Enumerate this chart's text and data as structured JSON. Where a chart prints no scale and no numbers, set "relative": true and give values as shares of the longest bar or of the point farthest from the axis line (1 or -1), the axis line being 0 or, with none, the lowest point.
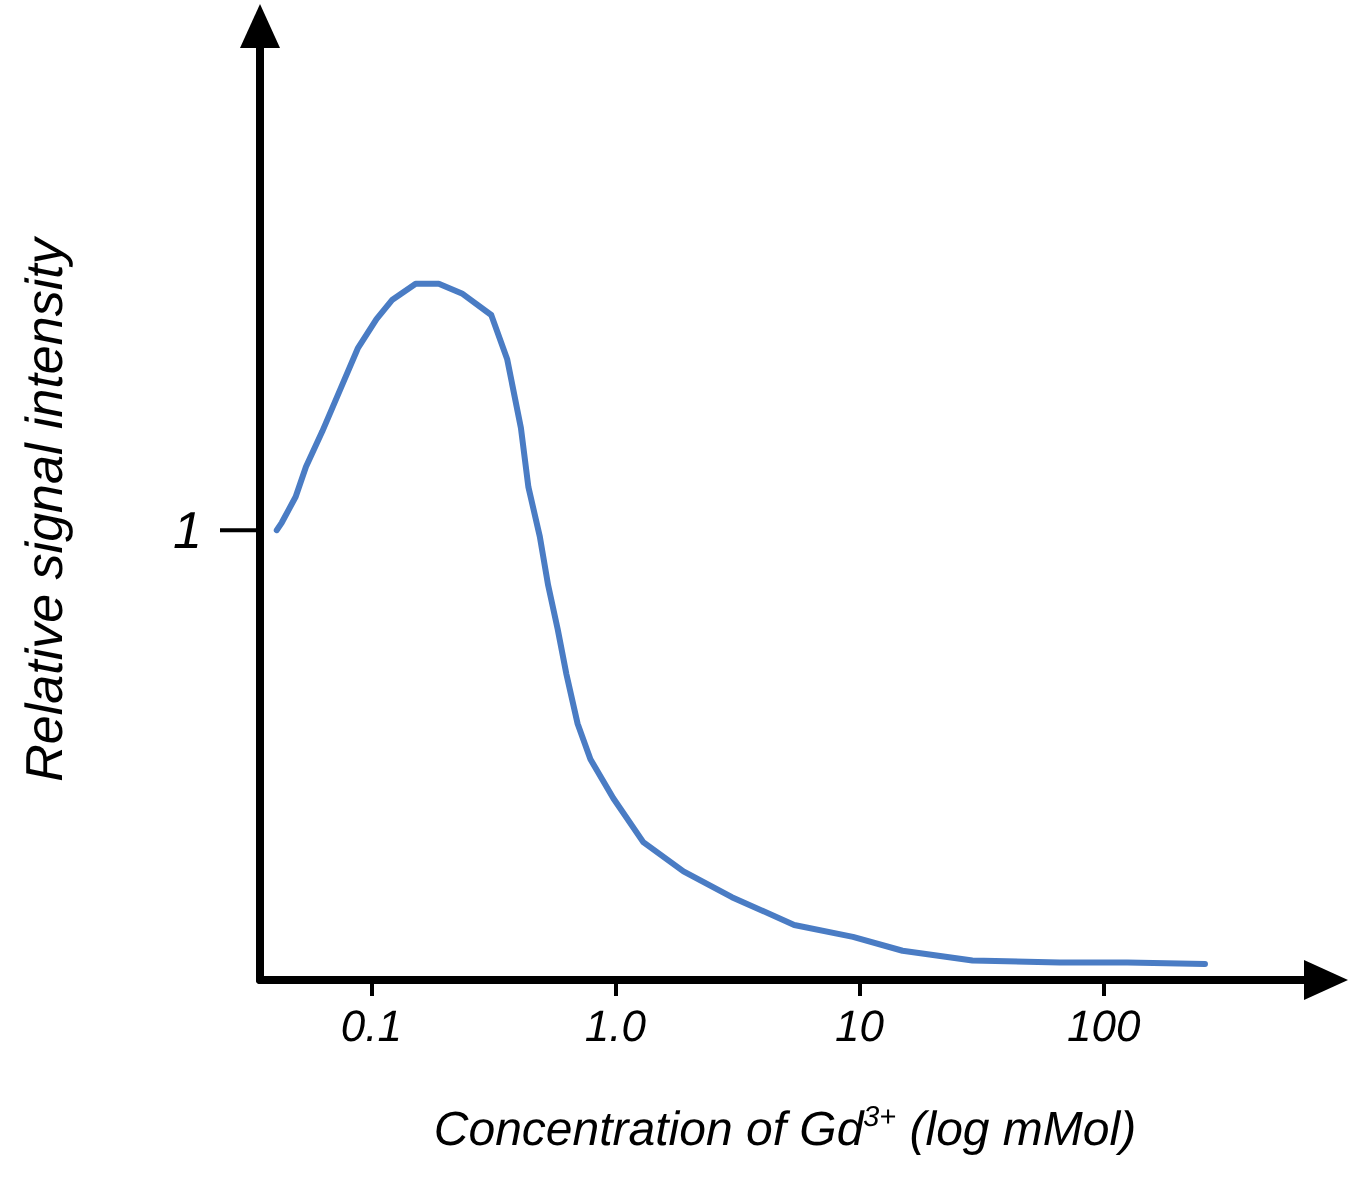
{
  "chart_data": {
    "type": "line",
    "relative": true,
    "xlabel": "Concentration of Gd$^{3+}$ (log mMol)",
    "ylabel": "Relative signal intensity",
    "log": "x",
    "xlim": [
      0.035,
      700
    ],
    "xticks": [
      0.1,
      {
        "value": 1,
        "label": "1.0"
      },
      10,
      100
    ],
    "grid": false,
    "marker": "none",
    "line_style": "solid",
    "ref_lines": [
      {
        "axis": "y",
        "value": 0.646,
        "label": "1"
      }
    ],
    "series": [
      {
        "color": "#4a7cc4",
        "x": [
          0.041,
          0.043,
          0.049,
          0.054,
          0.063,
          0.075,
          0.088,
          0.105,
          0.122,
          0.152,
          0.189,
          0.235,
          0.31,
          0.36,
          0.41,
          0.44,
          0.49,
          0.53,
          0.58,
          0.63,
          0.7,
          0.79,
          0.98,
          1.3,
          1.9,
          3.0,
          5.4,
          9.4,
          15,
          29,
          66,
          125,
          260
        ],
        "values": [
          0.646,
          0.657,
          0.694,
          0.737,
          0.788,
          0.85,
          0.907,
          0.949,
          0.977,
          1,
          1,
          0.986,
          0.955,
          0.892,
          0.793,
          0.708,
          0.637,
          0.567,
          0.504,
          0.439,
          0.368,
          0.317,
          0.261,
          0.198,
          0.156,
          0.119,
          0.079,
          0.062,
          0.042,
          0.028,
          0.025,
          0.025,
          0.023
        ]
      }
    ]
  }
}
